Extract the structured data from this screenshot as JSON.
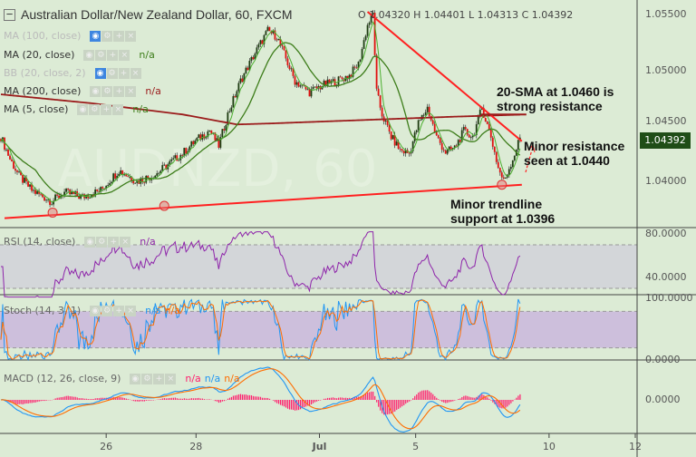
{
  "chart_data": {
    "type": "candlestick",
    "title": "Australian Dollar/New Zealand Dollar, 60, FXCM",
    "symbol_watermark": "AUDNZD, 60",
    "ohlc": {
      "o_label": "O",
      "o": "1.04320",
      "h_label": "H",
      "h": "1.04401",
      "l_label": "L",
      "l": "1.04313",
      "c_label": "C",
      "c": "1.04392"
    },
    "last_price": "1.04392",
    "price_ylim": [
      1.0368,
      1.056
    ],
    "price_ticks": [
      "1.05500",
      "1.05000",
      "1.04500",
      "1.04000"
    ],
    "price_tick_values": [
      1.055,
      1.05,
      1.045,
      1.04
    ],
    "x_ticks": [
      {
        "label": "26",
        "bar": 58.5
      },
      {
        "label": "28",
        "bar": 108
      },
      {
        "label": "Jul",
        "bar": 176
      },
      {
        "label": "5",
        "bar": 229
      },
      {
        "label": "10",
        "bar": 302.5
      },
      {
        "label": "12",
        "bar": 350
      }
    ],
    "bars_total": 351,
    "close_path": [
      [
        0,
        1.044
      ],
      [
        5,
        1.042
      ],
      [
        10,
        1.0405
      ],
      [
        17,
        1.0392
      ],
      [
        28,
        1.0382
      ],
      [
        35,
        1.039
      ],
      [
        45,
        1.0386
      ],
      [
        55,
        1.0392
      ],
      [
        65,
        1.041
      ],
      [
        75,
        1.04
      ],
      [
        85,
        1.0406
      ],
      [
        92,
        1.0415
      ],
      [
        100,
        1.0425
      ],
      [
        107,
        1.0436
      ],
      [
        115,
        1.0446
      ],
      [
        120,
        1.0432
      ],
      [
        125,
        1.046
      ],
      [
        132,
        1.049
      ],
      [
        140,
        1.0515
      ],
      [
        147,
        1.0535
      ],
      [
        152,
        1.053
      ],
      [
        157,
        1.051
      ],
      [
        162,
        1.049
      ],
      [
        170,
        1.048
      ],
      [
        177,
        1.0486
      ],
      [
        185,
        1.049
      ],
      [
        192,
        1.0495
      ],
      [
        197,
        1.0505
      ],
      [
        202,
        1.054
      ],
      [
        205,
        1.055
      ],
      [
        207,
        1.048
      ],
      [
        210,
        1.046
      ],
      [
        215,
        1.044
      ],
      [
        220,
        1.0428
      ],
      [
        225,
        1.0425
      ],
      [
        230,
        1.0452
      ],
      [
        235,
        1.0466
      ],
      [
        240,
        1.044
      ],
      [
        245,
        1.0426
      ],
      [
        250,
        1.043
      ],
      [
        255,
        1.0445
      ],
      [
        260,
        1.044
      ],
      [
        265,
        1.0466
      ],
      [
        270,
        1.044
      ],
      [
        274,
        1.0412
      ],
      [
        277,
        1.04
      ],
      [
        282,
        1.042
      ],
      [
        286,
        1.0439
      ]
    ],
    "ma200_path": [
      [
        0,
        1.0478
      ],
      [
        50,
        1.047
      ],
      [
        100,
        1.046
      ],
      [
        130,
        1.0451
      ],
      [
        150,
        1.0452
      ],
      [
        200,
        1.0455
      ],
      [
        250,
        1.0458
      ],
      [
        290,
        1.046
      ]
    ],
    "trendlines": [
      {
        "name": "resistance",
        "from": [
          202.5,
          1.0552
        ],
        "to": [
          287.5,
          1.0436
        ]
      },
      {
        "name": "sma-projection",
        "from": [
          265,
          1.046
        ],
        "to": [
          290,
          1.046
        ]
      },
      {
        "name": "support",
        "from": [
          2.5,
          1.0367
        ],
        "to": [
          287.5,
          1.0397
        ]
      }
    ],
    "touch_points": [
      [
        29,
        1.0372
      ],
      [
        90.5,
        1.0378
      ],
      [
        276.5,
        1.0397
      ]
    ],
    "legend": {
      "ma100": "MA (100, close)",
      "ma20": "MA (20, close)",
      "bb": "BB (20, close, 2)",
      "ma200": "MA (200, close)",
      "ma5": "MA (5, close)",
      "na": "n/a"
    },
    "annotations": {
      "sma": [
        "20-SMA at 1.0460 is",
        "strong resistance"
      ],
      "minor_res": [
        "Minor resistance",
        "seen at 1.0440"
      ],
      "support": [
        "Minor trendline",
        "support at 1.0396"
      ]
    },
    "rsi": {
      "label": "RSI (14, close)",
      "na": "n/a",
      "ticks": [
        "80.0000",
        "40.0000"
      ],
      "bands": [
        70,
        30
      ],
      "color": "#8e24aa"
    },
    "stoch": {
      "label": "Stoch (14, 3, 1)",
      "na_k": "n/a",
      "na_d": "n/a",
      "ticks": [
        "100.0000",
        "0.0000"
      ],
      "bands": [
        80,
        20
      ]
    },
    "macd": {
      "label": "MACD (12, 26, close, 9)",
      "na_hist": "n/a",
      "na_macd": "n/a",
      "na_signal": "n/a",
      "ticks": [
        "0.0000"
      ]
    },
    "colors": {
      "bg": "#dcebd5",
      "up": "#1e3d12",
      "down": "#e01010",
      "ma20": "#3d7d1a",
      "ma5": "#4caf30",
      "ma200": "#9b1b1b",
      "trend": "#ff2020",
      "rsi_band": "#d3d6d9",
      "stoch_band": "#cdbfdc",
      "k": "#2196f3",
      "d": "#ff6d00",
      "hist": "#ff1f6e"
    }
  }
}
